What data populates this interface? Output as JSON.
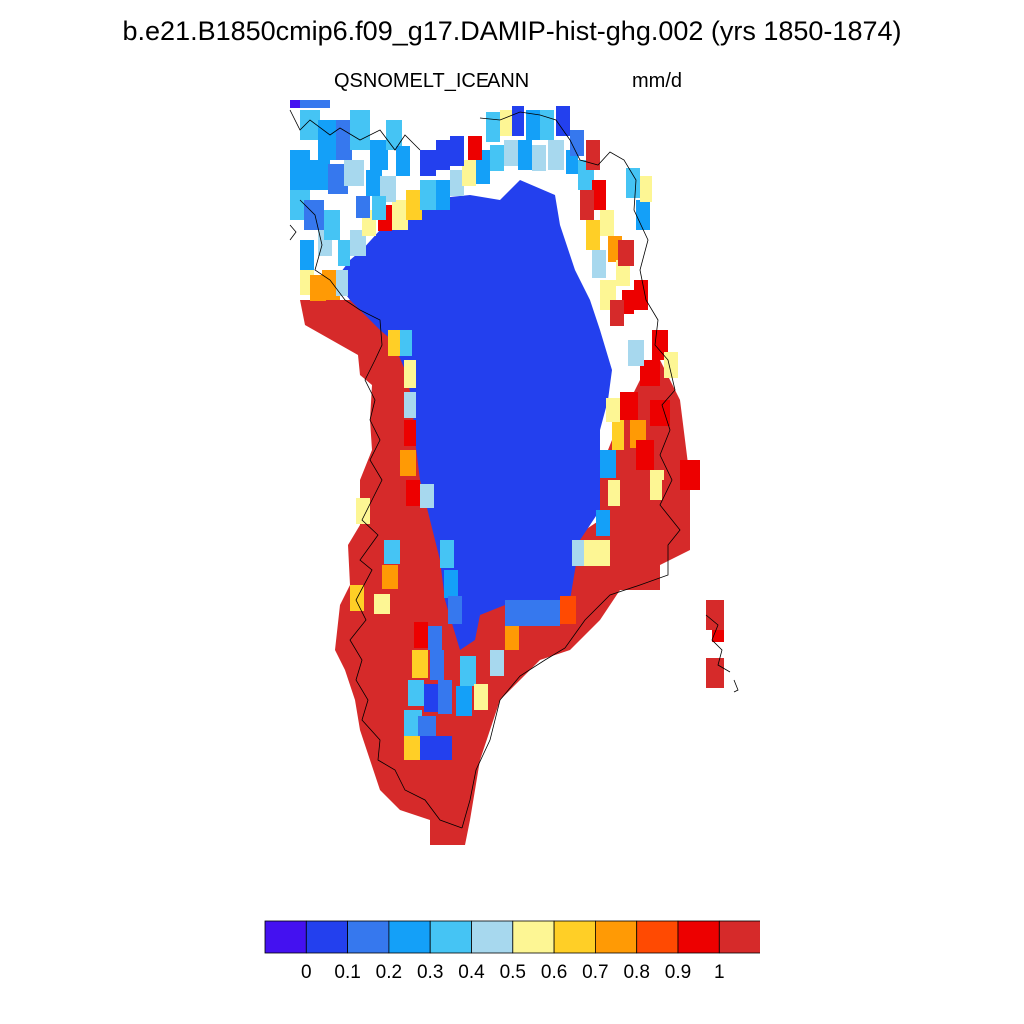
{
  "header": {
    "title": "b.e21.B1850cmip6.f09_g17.DAMIP-hist-ghg.002 (yrs 1850-1874)",
    "variable": "QSNOMELT_ICE",
    "season": "ANN",
    "units": "mm/d"
  },
  "colorbar": {
    "colors": [
      "#4411f0",
      "#2340ee",
      "#3678ee",
      "#14a0f8",
      "#45c4f4",
      "#a7d8ee",
      "#fdf694",
      "#ffcf26",
      "#ff9a05",
      "#ff4a02",
      "#ed0000",
      "#d62a2a"
    ],
    "labels": [
      "0",
      "0.1",
      "0.2",
      "0.3",
      "0.4",
      "0.5",
      "0.6",
      "0.7",
      "0.8",
      "0.9",
      "1"
    ]
  },
  "map": {
    "region": "Greenland",
    "field": "annual mean ice snowmelt",
    "interior_level": "0.1",
    "coastal_level": "1"
  }
}
